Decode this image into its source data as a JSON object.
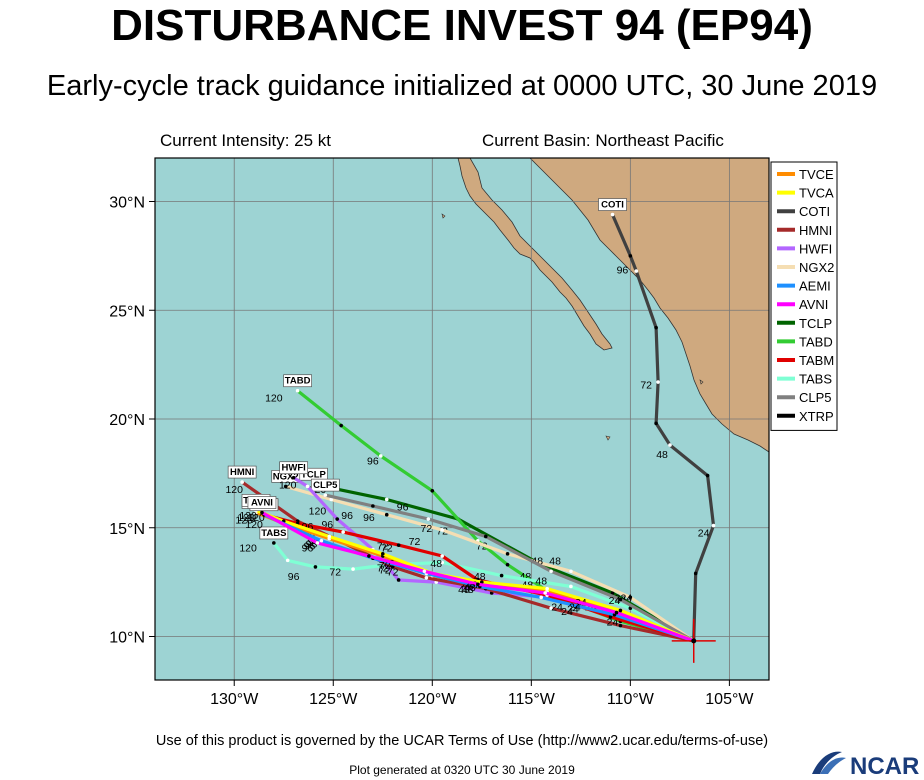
{
  "header": {
    "title": "DISTURBANCE INVEST 94 (EP94)",
    "subtitle": "Early-cycle track guidance initialized at 0000 UTC, 30 June 2019",
    "current_intensity": "Current Intensity: 25 kt",
    "current_basin": "Current Basin: Northeast Pacific"
  },
  "footer": {
    "terms": "Use of this product is governed by the UCAR Terms of Use (http://www2.ucar.edu/terms-of-use)",
    "generated": "Plot generated at 0320 UTC   30 June 2019",
    "logo_text": "NCAR"
  },
  "map": {
    "lon_range": [
      -134,
      -103
    ],
    "lat_range": [
      8,
      32
    ],
    "x_ticks": [
      {
        "value": -130,
        "label": "130°W"
      },
      {
        "value": -125,
        "label": "125°W"
      },
      {
        "value": -120,
        "label": "120°W"
      },
      {
        "value": -115,
        "label": "115°W"
      },
      {
        "value": -110,
        "label": "110°W"
      },
      {
        "value": -105,
        "label": "105°W"
      }
    ],
    "y_ticks": [
      {
        "value": 10,
        "label": "10°N"
      },
      {
        "value": 15,
        "label": "15°N"
      },
      {
        "value": 20,
        "label": "20°N"
      },
      {
        "value": 25,
        "label": "25°N"
      },
      {
        "value": 30,
        "label": "30°N"
      }
    ],
    "ocean_color": "#9dd3d3",
    "land_color": "#cfa97f",
    "initial_position": [
      -106.8,
      9.8
    ]
  },
  "legend": [
    {
      "name": "TVCE",
      "color": "#ff8c00"
    },
    {
      "name": "TVCA",
      "color": "#ffff00"
    },
    {
      "name": "COTI",
      "color": "#404040"
    },
    {
      "name": "HMNI",
      "color": "#a52a2a"
    },
    {
      "name": "HWFI",
      "color": "#b366ff"
    },
    {
      "name": "NGX2",
      "color": "#f5deb3"
    },
    {
      "name": "AEMI",
      "color": "#1e90ff"
    },
    {
      "name": "AVNI",
      "color": "#ff00ff"
    },
    {
      "name": "TCLP",
      "color": "#006400"
    },
    {
      "name": "TABD",
      "color": "#33cc33"
    },
    {
      "name": "TABM",
      "color": "#e00000"
    },
    {
      "name": "TABS",
      "color": "#7fffd4"
    },
    {
      "name": "CLP5",
      "color": "#808080"
    },
    {
      "name": "XTRP",
      "color": "#000000"
    }
  ],
  "tracks": [
    {
      "name": "TCLP",
      "label": "TCLP",
      "color": "#006400",
      "points": [
        [
          -106.8,
          9.8
        ],
        [
          -110.9,
          12.0
        ],
        [
          -114.5,
          13.3
        ],
        [
          -118.7,
          15.4
        ],
        [
          -122.3,
          16.3
        ],
        [
          -126.0,
          17.0
        ]
      ],
      "hour_labels": [
        [
          "24",
          -110.5,
          11.6
        ],
        [
          "48",
          -113.8,
          13.3
        ],
        [
          "72",
          -117.5,
          14.0
        ],
        [
          "96",
          -121.5,
          15.8
        ],
        [
          "120",
          -125.8,
          16.6
        ]
      ]
    },
    {
      "name": "COTI",
      "label": "COTI",
      "color": "#404040",
      "points": [
        [
          -106.8,
          9.8
        ],
        [
          -106.7,
          12.9
        ],
        [
          -105.8,
          15.1
        ],
        [
          -106.1,
          17.4
        ],
        [
          -108.0,
          18.8
        ],
        [
          -108.7,
          19.8
        ],
        [
          -108.6,
          21.7
        ],
        [
          -108.7,
          24.2
        ],
        [
          -109.7,
          26.8
        ],
        [
          -110.0,
          27.5
        ],
        [
          -110.9,
          29.4
        ]
      ],
      "hour_labels": [
        [
          "24",
          -106.3,
          14.6
        ],
        [
          "48",
          -108.4,
          18.2
        ],
        [
          "72",
          -109.2,
          21.4
        ],
        [
          "96",
          -110.4,
          26.7
        ]
      ]
    },
    {
      "name": "TABD",
      "label": "TABD",
      "color": "#33cc33",
      "points": [
        [
          -106.8,
          9.8
        ],
        [
          -110.5,
          10.7
        ],
        [
          -113.7,
          11.8
        ],
        [
          -116.2,
          13.3
        ],
        [
          -117.7,
          14.4
        ],
        [
          -120.0,
          16.7
        ],
        [
          -122.6,
          18.3
        ],
        [
          -124.6,
          19.7
        ],
        [
          -126.8,
          21.3
        ]
      ],
      "hour_labels": [
        [
          "24",
          -112.0,
          11.2
        ],
        [
          "48",
          -115.3,
          12.6
        ],
        [
          "72",
          -119.5,
          14.7
        ],
        [
          "96",
          -123.0,
          17.9
        ],
        [
          "120",
          -128.0,
          20.8
        ]
      ]
    },
    {
      "name": "TABS",
      "label": "TABS",
      "color": "#7fffd4",
      "points": [
        [
          -106.8,
          9.8
        ],
        [
          -110.0,
          11.3
        ],
        [
          -113.0,
          12.3
        ],
        [
          -116.5,
          12.8
        ],
        [
          -119.5,
          13.4
        ],
        [
          -122.2,
          13.3
        ],
        [
          -124.0,
          13.1
        ],
        [
          -125.9,
          13.2
        ],
        [
          -127.3,
          13.5
        ],
        [
          -128.0,
          14.3
        ]
      ],
      "hour_labels": [
        [
          "24",
          -111.6,
          11.2
        ],
        [
          "48",
          -115.2,
          12.2
        ],
        [
          "72",
          -124.9,
          12.8
        ],
        [
          "96",
          -127.0,
          12.6
        ],
        [
          "120",
          -129.3,
          13.9
        ]
      ]
    },
    {
      "name": "NGX2",
      "label": "NGX2",
      "color": "#f5deb3",
      "points": [
        [
          -106.8,
          9.8
        ],
        [
          -110.0,
          11.8
        ],
        [
          -113.0,
          13.0
        ],
        [
          -116.2,
          13.8
        ],
        [
          -119.5,
          14.9
        ],
        [
          -122.3,
          15.6
        ],
        [
          -125.1,
          16.3
        ],
        [
          -127.4,
          16.9
        ]
      ],
      "hour_labels": [
        [
          "24",
          -110.2,
          11.6
        ],
        [
          "48",
          -114.7,
          13.3
        ],
        [
          "72",
          -120.3,
          14.8
        ],
        [
          "96",
          -124.3,
          15.4
        ],
        [
          "120",
          -128.6,
          16.2
        ]
      ]
    },
    {
      "name": "CLP5",
      "label": "CLP5",
      "color": "#808080",
      "points": [
        [
          -106.8,
          9.8
        ],
        [
          -110.5,
          11.7
        ],
        [
          -114.0,
          13.0
        ],
        [
          -117.3,
          14.6
        ],
        [
          -120.2,
          15.4
        ],
        [
          -123.0,
          16.0
        ],
        [
          -125.4,
          16.5
        ]
      ],
      "hour_labels": [
        [
          "24",
          -110.8,
          11.5
        ],
        [
          "48",
          -114.5,
          12.4
        ],
        [
          "72",
          -120.9,
          14.2
        ],
        [
          "96",
          -123.2,
          15.3
        ],
        [
          "120",
          -125.8,
          15.6
        ]
      ]
    },
    {
      "name": "HWFI",
      "label": "HWFI",
      "color": "#b366ff",
      "points": [
        [
          -106.8,
          9.8
        ],
        [
          -110.8,
          10.9
        ],
        [
          -114.0,
          11.8
        ],
        [
          -117.0,
          12.0
        ],
        [
          -119.8,
          12.5
        ],
        [
          -121.7,
          12.6
        ],
        [
          -123.0,
          14.0
        ],
        [
          -124.8,
          15.4
        ],
        [
          -126.3,
          16.9
        ],
        [
          -127.0,
          17.3
        ]
      ],
      "hour_labels": [
        [
          "24",
          -112.6,
          11.3
        ],
        [
          "48",
          -118.4,
          12.0
        ],
        [
          "72",
          -122.5,
          14.0
        ],
        [
          "96",
          -125.3,
          15.0
        ],
        [
          "120",
          -127.3,
          16.8
        ]
      ]
    },
    {
      "name": "HMNI",
      "label": "HMNI",
      "color": "#a52a2a",
      "points": [
        [
          -106.8,
          9.8
        ],
        [
          -110.5,
          10.5
        ],
        [
          -114.0,
          11.3
        ],
        [
          -117.3,
          12.2
        ],
        [
          -120.3,
          12.7
        ],
        [
          -122.0,
          13.2
        ],
        [
          -124.7,
          14.4
        ],
        [
          -126.8,
          15.3
        ],
        [
          -129.6,
          17.1
        ]
      ],
      "hour_labels": [
        [
          "24",
          -110.9,
          10.5
        ],
        [
          "48",
          -118.2,
          12.0
        ],
        [
          "72",
          -122.0,
          12.8
        ],
        [
          "96",
          -126.2,
          14.6
        ],
        [
          "120",
          -130.0,
          16.6
        ]
      ]
    },
    {
      "name": "TABM",
      "label": "TABM",
      "color": "#e00000",
      "points": [
        [
          -106.8,
          9.8
        ],
        [
          -111.0,
          10.9
        ],
        [
          -114.2,
          11.9
        ],
        [
          -117.7,
          12.6
        ],
        [
          -119.5,
          13.7
        ],
        [
          -121.7,
          14.2
        ],
        [
          -124.5,
          14.8
        ],
        [
          -126.8,
          15.2
        ],
        [
          -128.5,
          15.6
        ]
      ],
      "hour_labels": [
        [
          "24",
          -113.7,
          11.2
        ],
        [
          "48",
          -119.8,
          13.2
        ],
        [
          "72",
          -122.3,
          13.9
        ],
        [
          "96",
          -126.3,
          14.9
        ],
        [
          "120",
          -129.0,
          15.0
        ]
      ]
    },
    {
      "name": "TVCE",
      "label": "TVCE",
      "color": "#ff8c00",
      "points": [
        [
          -106.8,
          9.8
        ],
        [
          -110.5,
          11.1
        ],
        [
          -114.2,
          12.1
        ],
        [
          -117.5,
          12.4
        ],
        [
          -120.0,
          12.8
        ],
        [
          -122.5,
          13.7
        ],
        [
          -125.2,
          14.5
        ],
        [
          -127.5,
          15.2
        ],
        [
          -128.9,
          15.7
        ]
      ],
      "hour_labels": [
        [
          "24",
          -113.2,
          11.0
        ],
        [
          "48",
          -118.2,
          12.2
        ],
        [
          "72",
          -122.4,
          12.9
        ],
        [
          "96",
          -126.3,
          13.9
        ],
        [
          "120",
          -129.4,
          15.3
        ]
      ]
    },
    {
      "name": "TVCA",
      "label": "TVCA",
      "color": "#ffff00",
      "points": [
        [
          -106.8,
          9.8
        ],
        [
          -110.5,
          11.2
        ],
        [
          -114.2,
          12.2
        ],
        [
          -117.5,
          12.5
        ],
        [
          -120.0,
          12.9
        ],
        [
          -122.5,
          13.8
        ],
        [
          -125.2,
          14.6
        ],
        [
          -127.5,
          15.3
        ],
        [
          -128.9,
          15.8
        ]
      ],
      "hour_labels": [
        [
          "24",
          -112.5,
          11.4
        ],
        [
          "48",
          -117.6,
          12.6
        ],
        [
          "72",
          -122.2,
          13.2
        ],
        [
          "96",
          -126.0,
          14.2
        ],
        [
          "120",
          -128.9,
          15.3
        ]
      ]
    },
    {
      "name": "AEMI",
      "label": "AEMI",
      "color": "#1e90ff",
      "points": [
        [
          -106.8,
          9.8
        ],
        [
          -110.8,
          11.0
        ],
        [
          -114.5,
          11.8
        ],
        [
          -117.6,
          12.3
        ],
        [
          -120.3,
          12.9
        ],
        [
          -123.0,
          13.6
        ],
        [
          -125.6,
          14.4
        ],
        [
          -128.5,
          15.6
        ]
      ],
      "hour_labels": [
        [
          "24",
          -112.8,
          11.2
        ],
        [
          "48",
          -118.0,
          12.2
        ],
        [
          "72",
          -122.4,
          13.1
        ],
        [
          "96",
          -126.1,
          14.1
        ],
        [
          "120",
          -129.5,
          15.2
        ]
      ]
    },
    {
      "name": "AVNI",
      "label": "AVNI",
      "color": "#ff00ff",
      "points": [
        [
          -106.8,
          9.8
        ],
        [
          -110.7,
          11.1
        ],
        [
          -114.3,
          12.0
        ],
        [
          -117.7,
          12.4
        ],
        [
          -120.4,
          13.0
        ],
        [
          -123.2,
          13.7
        ],
        [
          -125.8,
          14.3
        ],
        [
          -128.6,
          15.7
        ]
      ],
      "hour_labels": [
        [
          "24",
          -112.9,
          11.1
        ],
        [
          "48",
          -118.1,
          12.1
        ],
        [
          "72",
          -122.5,
          13.0
        ],
        [
          "96",
          -126.2,
          14.0
        ],
        [
          "120",
          -129.3,
          15.4
        ]
      ]
    },
    {
      "name": "XTRP",
      "label": "XTRP",
      "color": "#000000",
      "points": [
        [
          -106.8,
          9.8
        ],
        [
          -106.8,
          9.8
        ]
      ],
      "hour_labels": []
    }
  ]
}
